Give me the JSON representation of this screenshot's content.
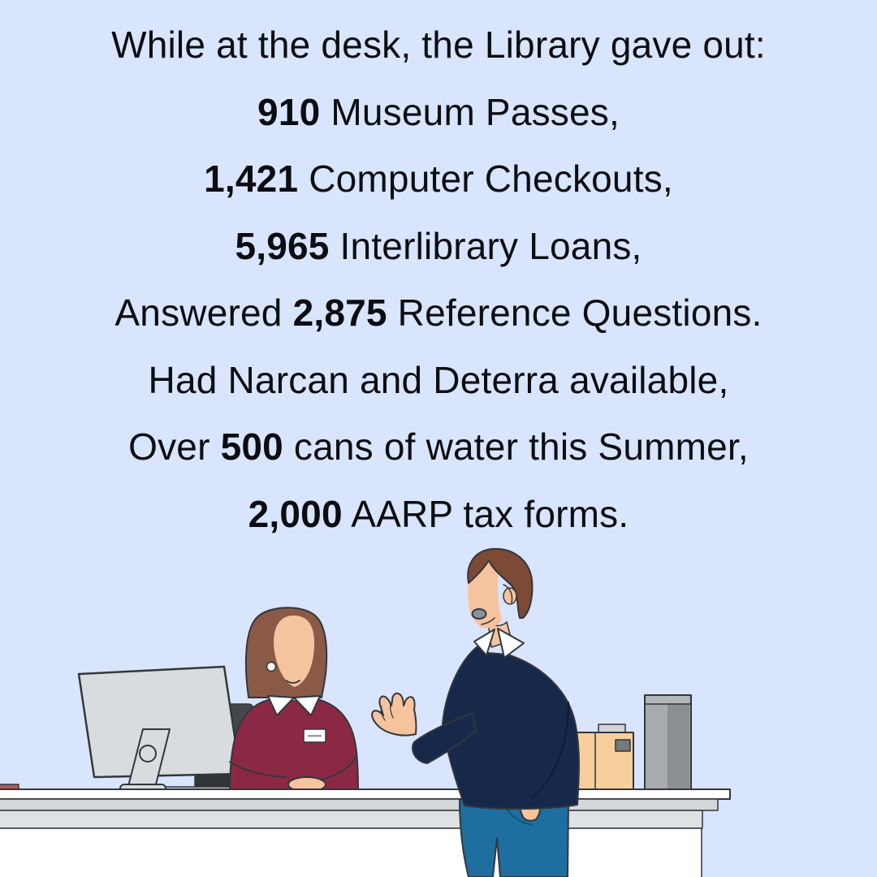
{
  "poster": {
    "background_color": "#d9e5fc",
    "text_color": "#0c0d12"
  },
  "headline": {
    "lines": [
      {
        "segments": [
          {
            "text": "While at the desk, the Library gave out:",
            "bold": false
          }
        ]
      },
      {
        "segments": [
          {
            "text": "910",
            "bold": true
          },
          {
            "text": " Museum Passes,",
            "bold": false
          }
        ]
      },
      {
        "segments": [
          {
            "text": "1,421",
            "bold": true
          },
          {
            "text": " Computer Checkouts,",
            "bold": false
          }
        ]
      },
      {
        "segments": [
          {
            "text": "5,965",
            "bold": true
          },
          {
            "text": " Interlibrary Loans,",
            "bold": false
          }
        ]
      },
      {
        "segments": [
          {
            "text": "Answered ",
            "bold": false
          },
          {
            "text": "2,875",
            "bold": true
          },
          {
            "text": " Reference Questions.",
            "bold": false
          }
        ]
      },
      {
        "segments": [
          {
            "text": "Had Narcan and Deterra available,",
            "bold": false
          }
        ]
      },
      {
        "segments": [
          {
            "text": "Over ",
            "bold": false
          },
          {
            "text": "500",
            "bold": true
          },
          {
            "text": " cans of water this Summer,",
            "bold": false
          }
        ]
      },
      {
        "segments": [
          {
            "text": "2,000",
            "bold": true
          },
          {
            "text": " AARP tax forms.",
            "bold": false
          }
        ]
      }
    ]
  },
  "illustration": {
    "description": "Flat-style illustration of a librarian in a maroon sweater seated behind a reference desk with a computer monitor, name badge and office chair, talking with a standing patron in a navy sweater and blue jeans who gestures with one hand; a tan box and a gray canister sit on the white desk.",
    "colors": {
      "ink": "#32373c",
      "skin": "#f6c39f",
      "hair-woman": "#8a5a47",
      "hair-man": "#7d4a36",
      "maroon": "#8b2944",
      "navy": "#16294b",
      "navy-dark": "#0d1b33",
      "jeans": "#1e6f9f",
      "jeans-dark": "#14537a",
      "monitor-gray": "#d9dcdf",
      "monitor-plate": "#c7cbce",
      "desk-white": "#ffffff",
      "desk-gray": "#d4d8db",
      "desk-gray2": "#dfe2e5",
      "chair-gray": "#44484e",
      "chair-dark": "#303439",
      "box-tan": "#f6cf9d",
      "lid-gray": "#d2d5d8",
      "label-gray": "#75797d",
      "canister": "#a7abae",
      "canister-dark": "#8b8f92",
      "canister-light": "#b3b7ba",
      "mouth-gray": "#8a9299",
      "collar-white": "#ffffff",
      "badge-line": "#9aa0a5",
      "book-red": "#b2595d"
    }
  }
}
